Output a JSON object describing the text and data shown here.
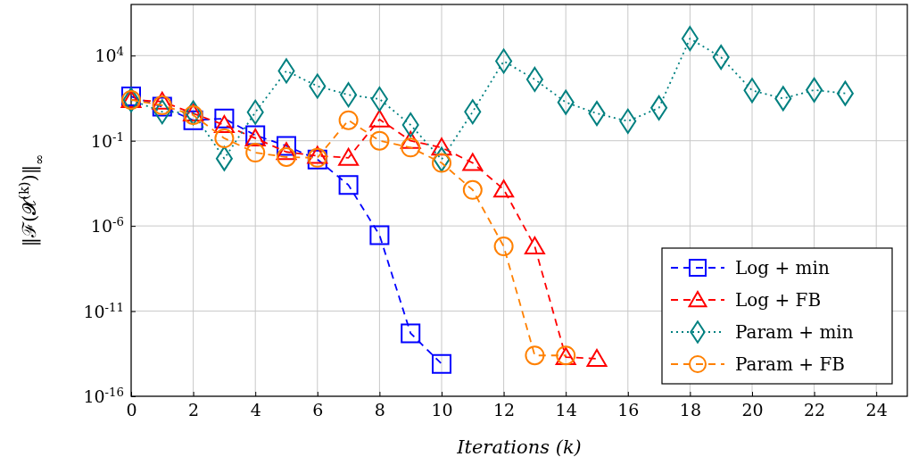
{
  "chart_data": {
    "type": "line",
    "xlabel": "Iterations (k)",
    "ylabel": "‖ℱ(𝓧$^{(k)}$)‖$_{∞}$",
    "log": "y",
    "grid": true,
    "legend": "bottom right",
    "xlim": [
      0,
      25
    ],
    "xticks": [
      0,
      2,
      4,
      6,
      8,
      10,
      12,
      14,
      16,
      18,
      20,
      22,
      24
    ],
    "ylim": [
      1e-16,
      10000000.0
    ],
    "yticks": [
      {
        "value": 1e-16,
        "label": "10$^{-16}$"
      },
      {
        "value": 1e-11,
        "label": "10$^{-11}$"
      },
      {
        "value": 1e-06,
        "label": "10$^{-6}$"
      },
      {
        "value": 0.1,
        "label": "10$^{-1}$"
      },
      {
        "value": 10000.0,
        "label": "10$^{4}$"
      }
    ],
    "x": [
      0,
      1,
      2,
      3,
      4,
      5,
      6,
      7,
      8,
      9,
      10,
      11,
      12,
      13,
      14,
      15,
      16,
      17,
      18,
      19,
      20,
      21,
      22,
      23
    ],
    "series": [
      {
        "name": "Log + min",
        "color": "#0000ff",
        "marker": "square",
        "line_style": "dashed",
        "x": [
          0,
          1,
          2,
          3,
          4,
          5,
          6,
          7,
          8,
          9,
          10
        ],
        "values": [
          40,
          10,
          1.6,
          2,
          0.21,
          0.05,
          0.008,
          0.00025,
          2.9e-07,
          5e-13,
          8e-15
        ]
      },
      {
        "name": "Log + FB",
        "color": "#ff0000",
        "marker": "triangle",
        "line_style": "dashed",
        "x": [
          0,
          1,
          2,
          3,
          4,
          5,
          6,
          7,
          8,
          9,
          10,
          11,
          12,
          13,
          14,
          15
        ],
        "values": [
          25,
          20,
          4,
          0.85,
          0.14,
          0.022,
          0.013,
          0.01,
          1.8,
          0.1,
          0.04,
          0.005,
          0.00014,
          6.3e-08,
          2e-14,
          1.6e-14
        ]
      },
      {
        "name": "Param + min",
        "color": "#008080",
        "marker": "diamond",
        "line_style": "dotted",
        "values": [
          25,
          5,
          4.3,
          0.009,
          4.7,
          1260,
          160,
          50,
          28,
          0.85,
          0.008,
          5,
          4700,
          400,
          18,
          4,
          1.4,
          8.5,
          100000,
          8000,
          90,
          30,
          95,
          60
        ]
      },
      {
        "name": "Param + FB",
        "color": "#ff8000",
        "marker": "circle",
        "line_style": "dashed",
        "x": [
          0,
          1,
          2,
          3,
          4,
          5,
          6,
          7,
          8,
          9,
          10,
          11,
          12,
          13,
          14
        ],
        "values": [
          25,
          12,
          3.2,
          0.14,
          0.02,
          0.011,
          0.01,
          1.6,
          0.1,
          0.04,
          0.005,
          0.00013,
          6.3e-08,
          2.5e-14,
          2.5e-14
        ]
      }
    ]
  }
}
